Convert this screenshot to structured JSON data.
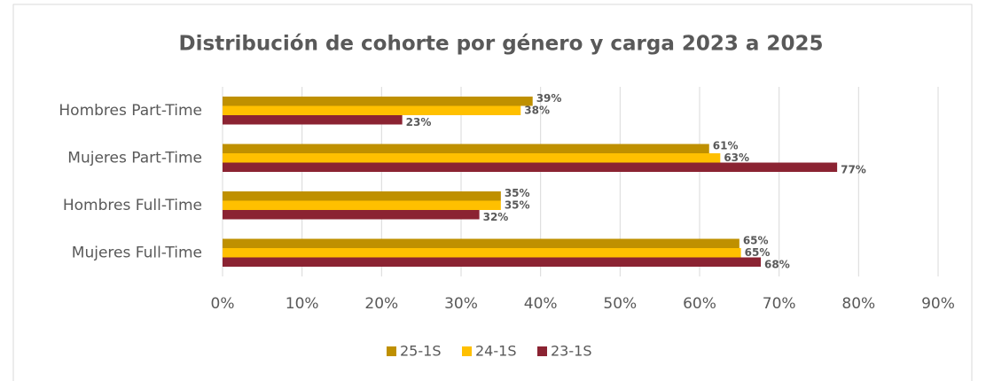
{
  "chart_data": {
    "type": "hbar",
    "title": "Distribución de cohorte por género y carga 2023 a 2025",
    "categories": [
      "Hombres Part-Time",
      "Mujeres Part-Time",
      "Hombres Full-Time",
      "Mujeres Full-Time"
    ],
    "series": [
      {
        "name": "25-1S",
        "color": "#bf9000",
        "values": [
          39,
          61.2,
          35,
          65
        ],
        "value_labels": [
          "39%",
          "61%",
          "35%",
          "65%"
        ]
      },
      {
        "name": "24-1S",
        "color": "#ffc000",
        "values": [
          37.5,
          62.6,
          35,
          65.2
        ],
        "value_labels": [
          "38%",
          "63%",
          "35%",
          "65%"
        ]
      },
      {
        "name": "23-1S",
        "color": "#8b2332",
        "values": [
          22.6,
          77.3,
          32.3,
          67.7
        ],
        "value_labels": [
          "23%",
          "77%",
          "32%",
          "68%"
        ]
      }
    ],
    "xlim": [
      0,
      90
    ],
    "xticks": [
      {
        "value": 0,
        "label": "0%"
      },
      {
        "value": 10,
        "label": "10%"
      },
      {
        "value": 20,
        "label": "20%"
      },
      {
        "value": 30,
        "label": "30%"
      },
      {
        "value": 40,
        "label": "40%"
      },
      {
        "value": 50,
        "label": "50%"
      },
      {
        "value": 60,
        "label": "60%"
      },
      {
        "value": 70,
        "label": "70%"
      },
      {
        "value": 80,
        "label": "80%"
      },
      {
        "value": 90,
        "label": "90%"
      }
    ],
    "grid": true,
    "legend": "bottom"
  }
}
